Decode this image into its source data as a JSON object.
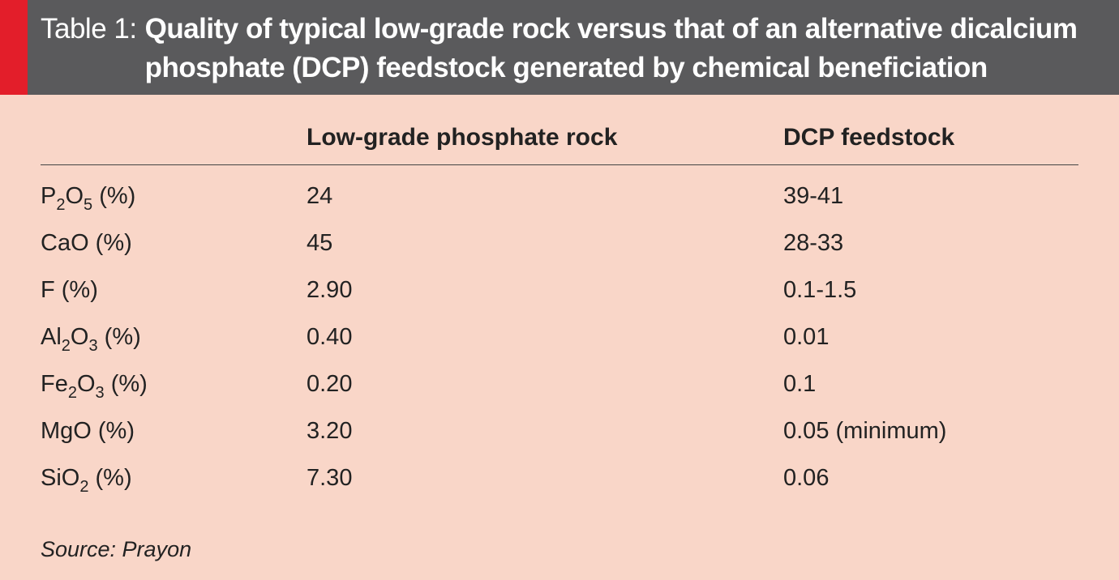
{
  "caption": {
    "label": "Table 1:",
    "title": "Quality of typical low-grade rock versus that of an alternative dicalcium phosphate (DCP) feedstock generated by chemical beneficiation"
  },
  "columns": {
    "rock": "Low-grade phosphate rock",
    "dcp": "DCP feedstock"
  },
  "rows": [
    {
      "parts": [
        "P",
        "2",
        "O",
        "5",
        " (%)"
      ],
      "rock": "24",
      "dcp": "39-41"
    },
    {
      "parts": [
        "CaO (%)"
      ],
      "rock": "45",
      "dcp": "28-33"
    },
    {
      "parts": [
        "F (%)"
      ],
      "rock": "2.90",
      "dcp": "0.1-1.5"
    },
    {
      "parts": [
        "Al",
        "2",
        "O",
        "3",
        " (%)"
      ],
      "rock": "0.40",
      "dcp": "0.01"
    },
    {
      "parts": [
        "Fe",
        "2",
        "O",
        "3",
        " (%)"
      ],
      "rock": "0.20",
      "dcp": "0.1"
    },
    {
      "parts": [
        "MgO (%)"
      ],
      "rock": "3.20",
      "dcp": "0.05 (minimum)"
    },
    {
      "parts": [
        "SiO",
        "2",
        " (%)"
      ],
      "rock": "7.30",
      "dcp": "0.06"
    }
  ],
  "source": "Source: Prayon",
  "colors": {
    "header_background": "#5a5a5c",
    "accent": "#e31e2a",
    "table_background": "#f9d6c8"
  }
}
